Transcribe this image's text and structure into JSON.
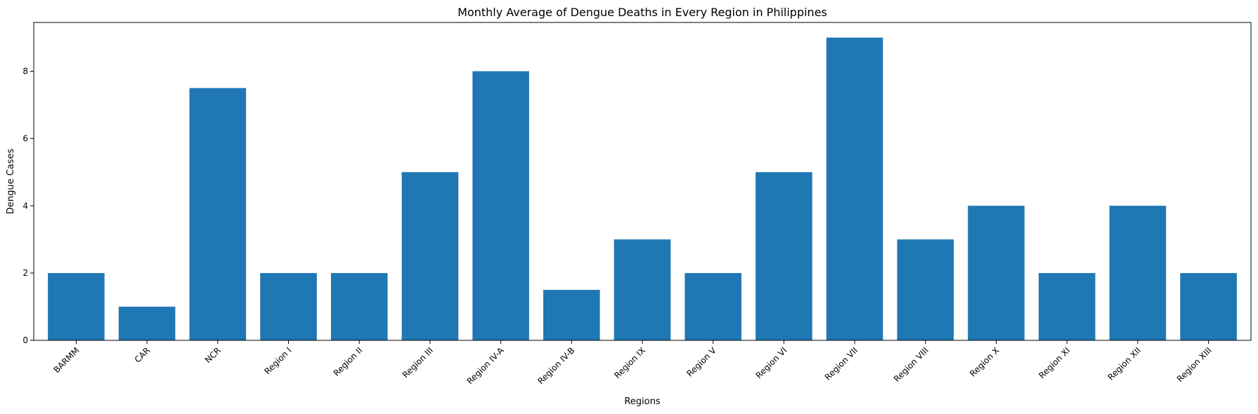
{
  "chart_data": {
    "type": "bar",
    "title": "Monthly Average of Dengue Deaths in Every Region in Philippines",
    "xlabel": "Regions",
    "ylabel": "Dengue Cases",
    "categories": [
      "BARMM",
      "CAR",
      "NCR",
      "Region I",
      "Region II",
      "Region III",
      "Region IV-A",
      "Region IV-B",
      "Region IX",
      "Region V",
      "Region VI",
      "Region VII",
      "Region VIII",
      "Region X",
      "Region XI",
      "Region XII",
      "Region XIII"
    ],
    "values": [
      2,
      1,
      7.5,
      2,
      2,
      5,
      8,
      1.5,
      3,
      2,
      5,
      9,
      3,
      4,
      2,
      4,
      2
    ],
    "ylim": [
      0,
      9.45
    ],
    "yticks": [
      0,
      2,
      4,
      6,
      8
    ],
    "bar_color": "#1f77b4",
    "grid": false,
    "legend": "none",
    "xtick_rotation_deg": 45
  }
}
